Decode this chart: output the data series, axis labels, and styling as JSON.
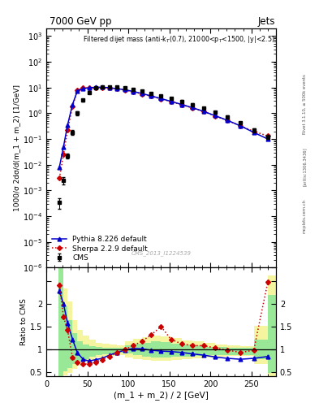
{
  "title_top": "7000 GeV pp",
  "title_right": "Jets",
  "annotation": "Filtered dijet mass (anti-k$_T$(0.7), 21000<p$_T$<1500, |y|<2.5)",
  "watermark": "CMS_2013_I1224539",
  "rivet_label": "Rivet 3.1.10, ≥ 500k events",
  "arxiv_label": "[arXiv:1306.3436]",
  "mcplots_label": "mcplots.cern.ch",
  "ylabel_main": "1000/σ 2dσ/d(m_1 + m_2) [1/GeV]",
  "ylabel_ratio": "Ratio to CMS",
  "xlabel": "(m_1 + m_2) / 2 [GeV]",
  "xlim": [
    0,
    280
  ],
  "ylim_main": [
    1e-06,
    2000
  ],
  "ylim_ratio": [
    0.4,
    2.8
  ],
  "yticks_ratio": [
    0.5,
    1.0,
    1.5,
    2.0,
    2.5
  ],
  "ytick_ratio_labels": [
    "0.5",
    "1",
    "1.5",
    "2",
    ""
  ],
  "cms_x": [
    16,
    21,
    26,
    32,
    38,
    45,
    52,
    60,
    68,
    77,
    86,
    96,
    106,
    117,
    128,
    140,
    152,
    165,
    178,
    192,
    206,
    221,
    237,
    253,
    270
  ],
  "cms_y": [
    0.00035,
    0.0025,
    0.022,
    0.18,
    1.0,
    3.2,
    6.5,
    9.5,
    10.5,
    10.8,
    10.2,
    9.5,
    8.5,
    7.2,
    6.0,
    4.8,
    3.8,
    2.9,
    2.2,
    1.6,
    1.1,
    0.72,
    0.42,
    0.22,
    0.12
  ],
  "cms_yerr": [
    0.00015,
    0.0008,
    0.005,
    0.04,
    0.15,
    0.45,
    0.75,
    0.85,
    0.9,
    0.9,
    0.85,
    0.8,
    0.75,
    0.65,
    0.55,
    0.45,
    0.38,
    0.28,
    0.22,
    0.16,
    0.12,
    0.08,
    0.05,
    0.035,
    0.022
  ],
  "pythia_x": [
    16,
    21,
    26,
    32,
    38,
    45,
    52,
    60,
    68,
    77,
    86,
    96,
    106,
    117,
    128,
    140,
    152,
    165,
    178,
    192,
    206,
    221,
    237,
    253,
    270
  ],
  "pythia_y": [
    0.008,
    0.05,
    0.35,
    2.2,
    7.5,
    9.0,
    9.8,
    10.2,
    10.3,
    9.8,
    9.0,
    8.2,
    7.0,
    5.8,
    4.7,
    3.7,
    2.9,
    2.2,
    1.65,
    1.18,
    0.8,
    0.53,
    0.32,
    0.18,
    0.1
  ],
  "sherpa_x": [
    16,
    21,
    26,
    32,
    38,
    45,
    52,
    60,
    68,
    77,
    86,
    96,
    106,
    117,
    128,
    140,
    152,
    165,
    178,
    192,
    206,
    221,
    237,
    253,
    270
  ],
  "sherpa_y": [
    0.003,
    0.025,
    0.22,
    1.8,
    8.0,
    9.5,
    9.7,
    9.8,
    10.0,
    9.5,
    8.8,
    8.0,
    6.8,
    5.6,
    4.6,
    3.6,
    2.85,
    2.15,
    1.6,
    1.15,
    0.78,
    0.52,
    0.32,
    0.2,
    0.13
  ],
  "pythia_ratio": [
    2.28,
    2.0,
    1.58,
    1.22,
    0.92,
    0.78,
    0.74,
    0.77,
    0.8,
    0.87,
    0.93,
    0.98,
    1.02,
    1.01,
    0.98,
    0.96,
    0.95,
    0.93,
    0.9,
    0.87,
    0.83,
    0.8,
    0.78,
    0.8,
    0.84
  ],
  "pythia_ratio_err": [
    0.05,
    0.04,
    0.04,
    0.03,
    0.03,
    0.02,
    0.02,
    0.02,
    0.02,
    0.02,
    0.02,
    0.02,
    0.02,
    0.02,
    0.02,
    0.02,
    0.02,
    0.02,
    0.02,
    0.02,
    0.02,
    0.02,
    0.02,
    0.03,
    0.04
  ],
  "sherpa_ratio": [
    2.42,
    1.72,
    1.42,
    0.82,
    0.72,
    0.68,
    0.67,
    0.72,
    0.77,
    0.84,
    0.92,
    1.0,
    1.08,
    1.18,
    1.32,
    1.5,
    1.22,
    1.12,
    1.08,
    1.08,
    1.03,
    0.98,
    0.93,
    0.98,
    2.48
  ],
  "sherpa_ratio_err": [
    0.05,
    0.04,
    0.04,
    0.03,
    0.03,
    0.02,
    0.02,
    0.02,
    0.02,
    0.02,
    0.02,
    0.02,
    0.02,
    0.02,
    0.02,
    0.02,
    0.02,
    0.02,
    0.02,
    0.02,
    0.02,
    0.02,
    0.02,
    0.03,
    0.05
  ],
  "green_band_x": [
    15,
    21,
    26,
    32,
    38,
    45,
    52,
    60,
    68,
    77,
    86,
    96,
    106,
    117,
    128,
    140,
    152,
    165,
    178,
    192,
    206,
    221,
    237,
    253,
    270,
    280
  ],
  "green_band_upper": [
    2.8,
    1.95,
    1.65,
    1.35,
    1.18,
    1.1,
    1.07,
    1.05,
    1.04,
    1.03,
    1.03,
    1.08,
    1.12,
    1.15,
    1.18,
    1.16,
    1.13,
    1.11,
    1.08,
    1.06,
    1.05,
    1.04,
    1.03,
    1.22,
    2.2,
    2.8
  ],
  "green_band_lower": [
    0.4,
    0.52,
    0.58,
    0.68,
    0.74,
    0.79,
    0.84,
    0.87,
    0.89,
    0.91,
    0.92,
    0.9,
    0.87,
    0.84,
    0.82,
    0.82,
    0.83,
    0.84,
    0.85,
    0.87,
    0.88,
    0.88,
    0.88,
    0.78,
    0.48,
    0.4
  ],
  "yellow_band_x": [
    15,
    21,
    26,
    32,
    38,
    45,
    52,
    60,
    68,
    77,
    86,
    96,
    106,
    117,
    128,
    140,
    152,
    165,
    178,
    192,
    206,
    221,
    237,
    253,
    270,
    280
  ],
  "yellow_band_upper": [
    2.8,
    2.35,
    2.05,
    1.65,
    1.42,
    1.3,
    1.22,
    1.15,
    1.12,
    1.1,
    1.08,
    1.17,
    1.23,
    1.27,
    1.3,
    1.28,
    1.24,
    1.2,
    1.17,
    1.14,
    1.11,
    1.09,
    1.07,
    1.52,
    2.62,
    2.8
  ],
  "yellow_band_lower": [
    0.4,
    0.43,
    0.47,
    0.56,
    0.64,
    0.71,
    0.77,
    0.81,
    0.84,
    0.86,
    0.87,
    0.82,
    0.79,
    0.77,
    0.75,
    0.75,
    0.76,
    0.78,
    0.8,
    0.82,
    0.84,
    0.85,
    0.85,
    0.68,
    0.4,
    0.4
  ],
  "cms_color": "black",
  "pythia_color": "#0000cc",
  "sherpa_color": "#cc0000",
  "green_color": "#98e898",
  "yellow_color": "#f5f5a0",
  "bg_color": "white"
}
